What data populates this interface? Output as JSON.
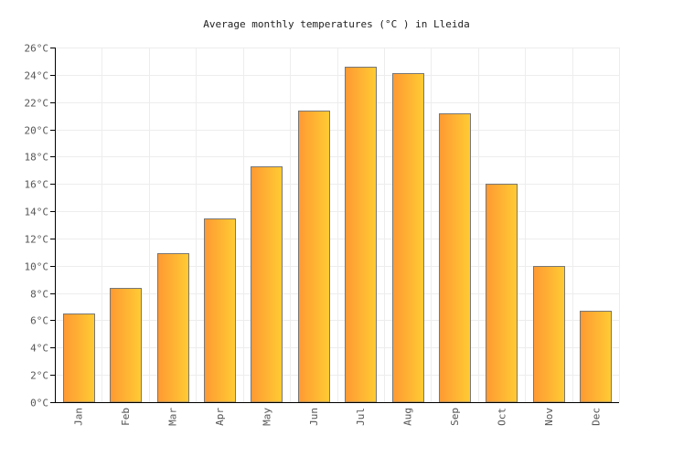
{
  "chart_data": {
    "type": "bar",
    "title": "Average monthly temperatures (°C ) in Lleida",
    "xlabel": "",
    "ylabel": "",
    "categories": [
      "Jan",
      "Feb",
      "Mar",
      "Apr",
      "May",
      "Jun",
      "Jul",
      "Aug",
      "Sep",
      "Oct",
      "Nov",
      "Dec"
    ],
    "values": [
      6.5,
      8.4,
      10.9,
      13.5,
      17.3,
      21.4,
      24.6,
      24.1,
      21.2,
      16.0,
      10.0,
      6.7
    ],
    "ylim": [
      0,
      26
    ],
    "y_ticks": [
      "0°C",
      "2°C",
      "4°C",
      "6°C",
      "8°C",
      "10°C",
      "12°C",
      "14°C",
      "16°C",
      "18°C",
      "20°C",
      "22°C",
      "24°C",
      "26°C"
    ],
    "grid": true,
    "legend": "none",
    "colors": {
      "bar_gradient_start": "#ff9933",
      "bar_gradient_end": "#ffcc33",
      "bar_border": "#777777",
      "grid": "#ededed",
      "axis": "#000000"
    }
  }
}
